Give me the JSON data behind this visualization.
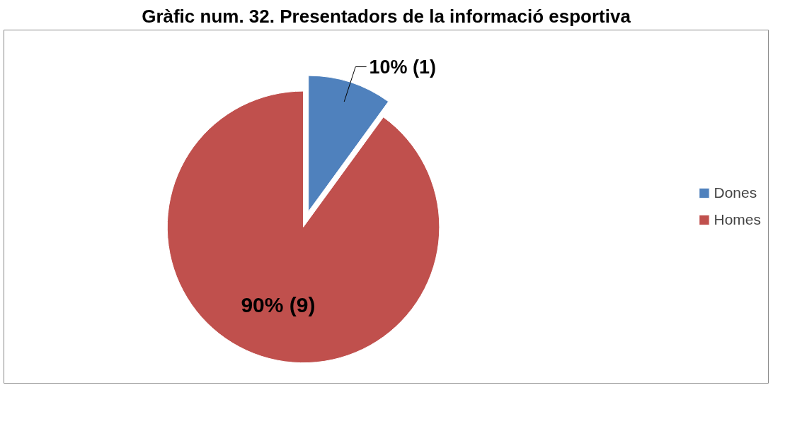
{
  "chart_data": {
    "type": "pie",
    "title": "Gràfic num. 32. Presentadors de la informació esportiva",
    "categories": [
      "Dones",
      "Homes"
    ],
    "values": [
      1,
      9
    ],
    "value_labels": [
      "10% (1)",
      "90% (9)"
    ],
    "colors": [
      "#4f81bd",
      "#c0504d"
    ],
    "legend": "right"
  }
}
